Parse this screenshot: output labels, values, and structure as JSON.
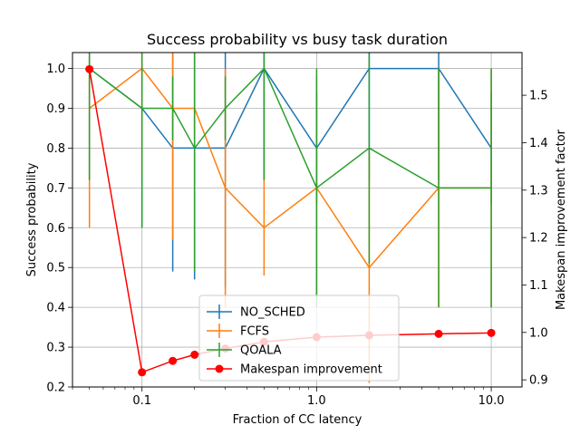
{
  "chart_data": {
    "type": "line",
    "title": "Success probability vs busy task duration",
    "xlabel": "Fraction of CC latency",
    "ylabel": "Success probability",
    "y2label": "Makespan improvement factor",
    "x_scale": "log",
    "xlim": [
      0.04,
      15
    ],
    "ylim": [
      0.2,
      1.04
    ],
    "y2lim": [
      0.885,
      1.59
    ],
    "x_ticks": [
      0.1,
      1.0,
      10.0
    ],
    "x_tick_labels": [
      "0.1",
      "1.0",
      "10.0"
    ],
    "y_ticks": [
      0.2,
      0.3,
      0.4,
      0.5,
      0.6,
      0.7,
      0.8,
      0.9,
      1.0
    ],
    "y_tick_labels": [
      "0.2",
      "0.3",
      "0.4",
      "0.5",
      "0.6",
      "0.7",
      "0.8",
      "0.9",
      "1.0"
    ],
    "y2_ticks": [
      0.9,
      1.0,
      1.1,
      1.2,
      1.3,
      1.4,
      1.5
    ],
    "y2_tick_labels": [
      "0.9",
      "1.0",
      "1.1",
      "1.2",
      "1.3",
      "1.4",
      "1.5"
    ],
    "grid": true,
    "legend_position": "bottom-center",
    "x": [
      0.05,
      0.1,
      0.15,
      0.2,
      0.3,
      0.5,
      1.0,
      2.0,
      5.0,
      10.0
    ],
    "series": [
      {
        "name": "NO_SCHED",
        "axis": "left",
        "color": "#1f77b4",
        "marker": "errorbar",
        "values": [
          1.0,
          0.9,
          0.8,
          0.8,
          0.8,
          1.0,
          0.8,
          1.0,
          1.0,
          0.8
        ],
        "errors": [
          0.28,
          0.3,
          0.31,
          0.33,
          0.35,
          0.28,
          0.14,
          0.28,
          0.28,
          0.14
        ]
      },
      {
        "name": "FCFS",
        "axis": "left",
        "color": "#ff7f0e",
        "marker": "errorbar",
        "values": [
          0.9,
          1.0,
          0.9,
          0.9,
          0.7,
          0.6,
          0.7,
          0.5,
          0.7,
          0.7
        ],
        "errors": [
          0.3,
          0.28,
          0.33,
          0.08,
          0.3,
          0.12,
          0.28,
          0.29,
          0.3,
          0.3
        ]
      },
      {
        "name": "QOALA",
        "axis": "left",
        "color": "#2ca02c",
        "marker": "errorbar",
        "values": [
          1.0,
          0.9,
          0.9,
          0.8,
          0.9,
          1.0,
          0.7,
          0.8,
          0.7,
          0.7
        ],
        "errors": [
          0.28,
          0.3,
          0.08,
          0.31,
          0.08,
          0.28,
          0.3,
          0.29,
          0.3,
          0.3
        ]
      },
      {
        "name": "Makespan improvement",
        "axis": "right",
        "color": "#ff0000",
        "marker": "circle",
        "values": [
          1.555,
          0.916,
          0.94,
          0.953,
          0.966,
          0.98,
          0.99,
          0.994,
          0.997,
          0.999
        ],
        "errors": null
      }
    ]
  }
}
